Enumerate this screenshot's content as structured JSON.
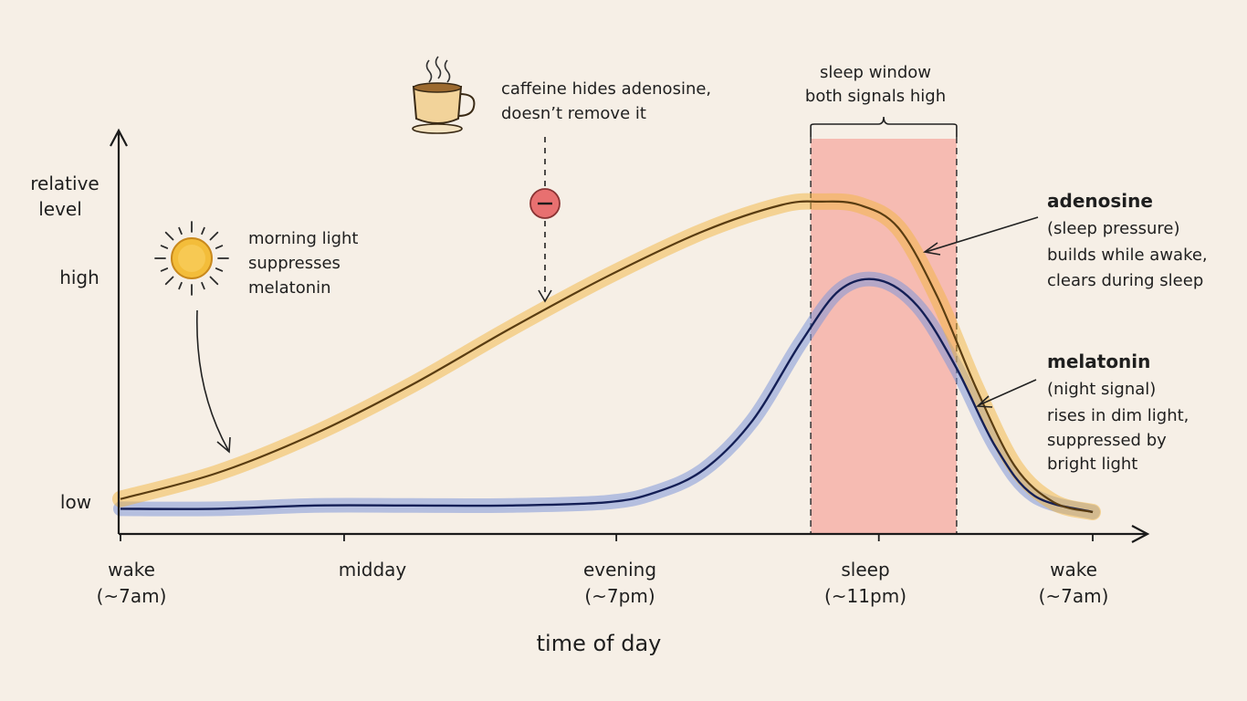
{
  "colors": {
    "background": "#f6efe6",
    "adenosine": "#f2b640",
    "adenosine_line": "#5a3d12",
    "melatonin": "#7f97d8",
    "melatonin_line": "#141f56",
    "sleep_window": "#f6a9a0",
    "caffeine_badge": "#e87070",
    "sun": "#f3bd3a"
  },
  "y_axis": {
    "label_line1": "relative",
    "label_line2": "level",
    "high": "high",
    "low": "low"
  },
  "x_axis": {
    "title": "time of day",
    "ticks": [
      {
        "line1": "wake",
        "line2": "(~7am)"
      },
      {
        "line1": "midday",
        "line2": ""
      },
      {
        "line1": "evening",
        "line2": "(~7pm)"
      },
      {
        "line1": "sleep",
        "line2": "(~11pm)"
      },
      {
        "line1": "wake",
        "line2": "(~7am)"
      }
    ]
  },
  "annotations": {
    "morning": {
      "line1": "morning light",
      "line2": "suppresses",
      "line3": "melatonin",
      "icon": "sun-icon"
    },
    "caffeine": {
      "line1": "caffeine hides adenosine,",
      "line2": "doesn’t remove it",
      "icon": "coffee-cup-icon",
      "badge_icon": "minus-icon"
    },
    "sleep_window": {
      "line1": "sleep window",
      "line2": "both signals high"
    }
  },
  "legend": {
    "adenosine": {
      "name": "adenosine",
      "sub": "(sleep pressure)",
      "desc1": "builds while awake,",
      "desc2": "clears during sleep"
    },
    "melatonin": {
      "name": "melatonin",
      "sub": "(night signal)",
      "desc1": "rises in dim light,",
      "desc2": "suppressed by",
      "desc3": "bright light"
    }
  },
  "chart_data": {
    "type": "line",
    "x": [
      "wake (~7am)",
      "midday",
      "evening (~7pm)",
      "sleep (~11pm)",
      "wake (~7am)"
    ],
    "x_numeric": [
      0,
      0.23,
      0.51,
      0.78,
      1.0
    ],
    "series": [
      {
        "name": "adenosine",
        "x": [
          0,
          0.1,
          0.2,
          0.3,
          0.4,
          0.5,
          0.6,
          0.68,
          0.72,
          0.76,
          0.8,
          0.84,
          0.88,
          0.92,
          0.96,
          1.0
        ],
        "values": [
          0.04,
          0.12,
          0.24,
          0.39,
          0.56,
          0.72,
          0.86,
          0.94,
          0.95,
          0.94,
          0.87,
          0.66,
          0.38,
          0.14,
          0.03,
          0.0
        ]
      },
      {
        "name": "melatonin",
        "x": [
          0,
          0.1,
          0.2,
          0.3,
          0.4,
          0.5,
          0.55,
          0.6,
          0.65,
          0.7,
          0.74,
          0.78,
          0.82,
          0.86,
          0.9,
          0.94,
          1.0
        ],
        "values": [
          0.01,
          0.01,
          0.02,
          0.02,
          0.02,
          0.03,
          0.06,
          0.13,
          0.28,
          0.52,
          0.68,
          0.71,
          0.63,
          0.44,
          0.2,
          0.05,
          0.0
        ]
      }
    ],
    "sleep_window": {
      "x_start": 0.71,
      "x_end": 0.86
    },
    "ylim": [
      0,
      1
    ]
  }
}
